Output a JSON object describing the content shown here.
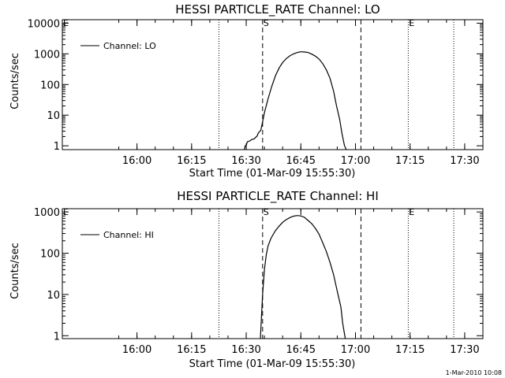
{
  "chart_data": [
    {
      "type": "line",
      "title": "HESSI PARTICLE_RATE Channel: LO",
      "xlabel": "Start Time (01-Mar-09 15:55:30)",
      "ylabel": "Counts/sec",
      "yscale": "log",
      "ylim": [
        0.75,
        13000
      ],
      "xlim_minutes_after_1555": [
        -15.5,
        100
      ],
      "x_ticks": [
        {
          "label": "16:00",
          "minutes": 5
        },
        {
          "label": "16:15",
          "minutes": 20
        },
        {
          "label": "16:30",
          "minutes": 35
        },
        {
          "label": "16:45",
          "minutes": 50
        },
        {
          "label": "17:00",
          "minutes": 65
        },
        {
          "label": "17:15",
          "minutes": 80
        },
        {
          "label": "17:30",
          "minutes": 95
        }
      ],
      "y_ticks": [
        {
          "label": "1",
          "value": 1
        },
        {
          "label": "10",
          "value": 10
        },
        {
          "label": "100",
          "value": 100
        },
        {
          "label": "1000",
          "value": 1000
        },
        {
          "label": "10000",
          "value": 10000
        }
      ],
      "legend": {
        "label": "Channel: LO",
        "position": "top-left"
      },
      "markers": [
        {
          "label": "S",
          "minutes": 39.5,
          "style": "dashed"
        },
        {
          "label": "",
          "minutes": 66.5,
          "style": "dashed"
        },
        {
          "label": "E",
          "minutes": 79.5,
          "style": "dotted"
        },
        {
          "label": "",
          "minutes": 27.5,
          "style": "dotted"
        },
        {
          "label": "",
          "minutes": 92,
          "style": "dotted"
        },
        {
          "label": "E",
          "minutes": -15.5,
          "style": "none"
        }
      ],
      "series": [
        {
          "name": "Channel: LO",
          "x_minutes": [
            34.5,
            34.7,
            35,
            35.3,
            36,
            36.5,
            37.2,
            38,
            38.3,
            39,
            39.5,
            40,
            41,
            42,
            43,
            44,
            45,
            46,
            47,
            48,
            49,
            50,
            51,
            52,
            53,
            54,
            55,
            56,
            57,
            58,
            59,
            59.8,
            60.7,
            61.3,
            62,
            62.5
          ],
          "y": [
            0.75,
            1,
            1,
            1.35,
            1.45,
            1.6,
            1.7,
            2.1,
            2.6,
            3.2,
            6,
            12,
            34,
            85,
            190,
            340,
            520,
            700,
            860,
            1000,
            1100,
            1170,
            1150,
            1100,
            980,
            840,
            680,
            480,
            300,
            160,
            60,
            20,
            7,
            2.5,
            1,
            0.75
          ]
        }
      ]
    },
    {
      "type": "line",
      "title": "HESSI PARTICLE_RATE Channel: HI",
      "xlabel": "Start Time (01-Mar-09 15:55:30)",
      "ylabel": "Counts/sec",
      "yscale": "log",
      "ylim": [
        0.85,
        1200
      ],
      "xlim_minutes_after_1555": [
        -15.5,
        100
      ],
      "x_ticks": [
        {
          "label": "16:00",
          "minutes": 5
        },
        {
          "label": "16:15",
          "minutes": 20
        },
        {
          "label": "16:30",
          "minutes": 35
        },
        {
          "label": "16:45",
          "minutes": 50
        },
        {
          "label": "17:00",
          "minutes": 65
        },
        {
          "label": "17:15",
          "minutes": 80
        },
        {
          "label": "17:30",
          "minutes": 95
        }
      ],
      "y_ticks": [
        {
          "label": "1",
          "value": 1
        },
        {
          "label": "10",
          "value": 10
        },
        {
          "label": "100",
          "value": 100
        },
        {
          "label": "1000",
          "value": 1000
        }
      ],
      "legend": {
        "label": "Channel: HI",
        "position": "top-left"
      },
      "markers": [
        {
          "label": "S",
          "minutes": 39.5,
          "style": "dashed"
        },
        {
          "label": "",
          "minutes": 66.5,
          "style": "dashed"
        },
        {
          "label": "E",
          "minutes": 79.5,
          "style": "dotted"
        },
        {
          "label": "",
          "minutes": 27.5,
          "style": "dotted"
        },
        {
          "label": "",
          "minutes": 92,
          "style": "dotted"
        },
        {
          "label": "E",
          "minutes": -15.5,
          "style": "none"
        }
      ],
      "series": [
        {
          "name": "Channel: HI",
          "x_minutes": [
            38.9,
            39.5,
            40,
            40.5,
            41,
            41.8,
            43,
            44,
            45,
            46,
            47,
            48,
            49,
            50,
            51,
            52,
            53,
            54,
            55,
            56,
            57,
            58,
            59,
            60,
            61,
            61.5,
            62,
            62.2
          ],
          "y": [
            0.85,
            10,
            40,
            90,
            150,
            230,
            350,
            450,
            560,
            650,
            730,
            790,
            820,
            800,
            740,
            620,
            520,
            400,
            290,
            180,
            110,
            60,
            30,
            12,
            5,
            2,
            1.1,
            0.85
          ]
        }
      ]
    }
  ],
  "footer_timestamp": "1-Mar-2010 10:08",
  "colors": {
    "background": "#ffffff",
    "ink": "#000000"
  }
}
